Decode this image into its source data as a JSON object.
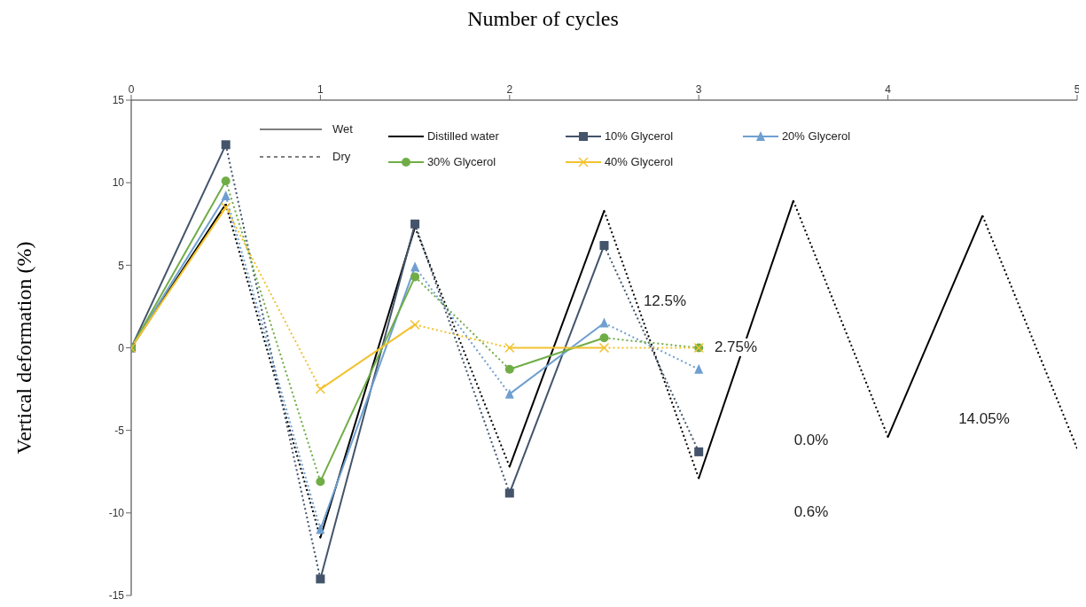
{
  "chart_data": {
    "type": "line",
    "xlabel": "Number of cycles",
    "ylabel": "Vertical deformation (%)",
    "xlim": [
      0,
      5
    ],
    "xticks": [
      0,
      1,
      2,
      3,
      4,
      5
    ],
    "ylim": [
      -15,
      15
    ],
    "yticks": [
      -15,
      -10,
      -5,
      0,
      5,
      10,
      15
    ],
    "legend": "top",
    "annotations": [
      "Wet",
      "Dry",
      "12.5%",
      "2.75%",
      "0.0%",
      "0.6%",
      "14.05%"
    ],
    "series": [
      {
        "name": "Distilled water",
        "color": "#000000",
        "marker": "none",
        "line_style": [
          "solid",
          "dotted",
          "solid",
          "dotted",
          "solid",
          "dotted",
          "solid",
          "dotted",
          "solid",
          "dotted"
        ],
        "x": [
          0,
          0.5,
          1,
          1.5,
          2,
          2.5,
          3,
          3.5,
          4,
          4.5,
          5
        ],
        "values": [
          0,
          8.7,
          -11.5,
          7.3,
          -7.2,
          8.3,
          -7.9,
          8.9,
          -5.4,
          8.0,
          -6.1
        ]
      },
      {
        "name": "10% Glycerol",
        "color": "#44546a",
        "marker": "square",
        "line_style": [
          "solid",
          "dotted",
          "solid",
          "dotted",
          "solid",
          "dotted"
        ],
        "x": [
          0,
          0.5,
          1,
          1.5,
          2,
          2.5,
          3
        ],
        "values": [
          0,
          12.3,
          -14,
          7.5,
          -8.8,
          6.2,
          -6.3
        ]
      },
      {
        "name": "20% Glycerol",
        "color": "#6f9fd0",
        "marker": "triangle",
        "line_style": [
          "solid",
          "dotted",
          "solid",
          "dotted",
          "solid",
          "dotted"
        ],
        "x": [
          0,
          0.5,
          1,
          1.5,
          2,
          2.5,
          3
        ],
        "values": [
          0,
          9.2,
          -11,
          4.9,
          -2.8,
          1.5,
          -1.3
        ]
      },
      {
        "name": "30% Glycerol",
        "color": "#70ad47",
        "marker": "circle",
        "line_style": [
          "solid",
          "dotted",
          "solid",
          "dotted",
          "solid",
          "dotted"
        ],
        "x": [
          0,
          0.5,
          1,
          1.5,
          2,
          2.5,
          3
        ],
        "values": [
          0,
          10.1,
          -8.1,
          4.3,
          -1.3,
          0.6,
          0
        ]
      },
      {
        "name": "40% Glycerol",
        "color": "#f2c230",
        "marker": "cross",
        "line_style": [
          "solid",
          "dotted",
          "solid",
          "dotted",
          "solid",
          "dotted"
        ],
        "x": [
          0,
          0.5,
          1,
          1.5,
          2,
          2.5,
          3
        ],
        "values": [
          0,
          8.5,
          -2.5,
          1.4,
          0,
          0,
          0
        ]
      }
    ]
  }
}
